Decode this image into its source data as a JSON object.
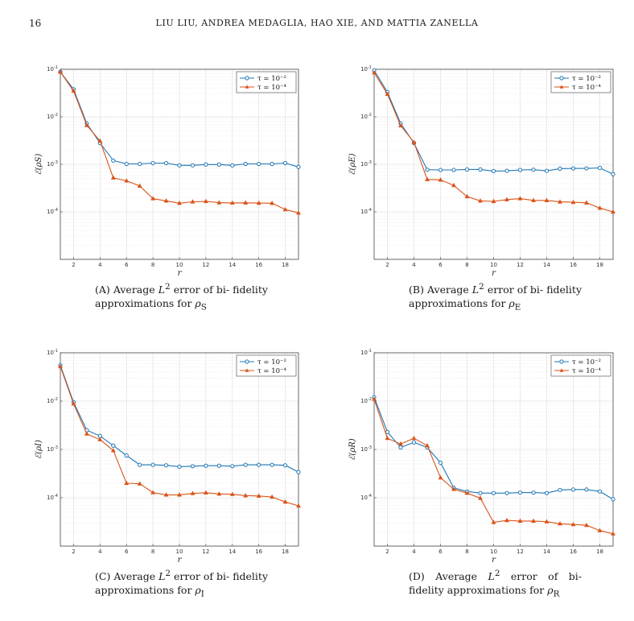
{
  "page": {
    "number": "16",
    "running_head": "LIU LIU, ANDREA MEDAGLIA, HAO XIE, AND MATTIA ZANELLA"
  },
  "legend_labels": [
    "τ = 10⁻²",
    "τ = 10⁻⁴"
  ],
  "colors": {
    "series_a": "#1f77b4",
    "series_b": "#d95319"
  },
  "chart_data": [
    {
      "type": "line",
      "ylabel": "ℰ(ρS)",
      "xlabel": "r",
      "yscale": "log",
      "ylim": [
        1e-05,
        0.1
      ],
      "x": [
        1,
        2,
        3,
        4,
        5,
        6,
        7,
        8,
        9,
        10,
        11,
        12,
        13,
        14,
        15,
        16,
        17,
        18,
        19
      ],
      "xticks": [
        2,
        4,
        6,
        8,
        10,
        12,
        14,
        16,
        18
      ],
      "legend": "top-right",
      "grid": true,
      "series": [
        {
          "name": "τ = 10⁻²",
          "values": [
            0.088,
            0.038,
            0.0072,
            0.0028,
            0.0012,
            0.00102,
            0.00102,
            0.00106,
            0.00106,
            0.00095,
            0.00095,
            0.00099,
            0.00099,
            0.00095,
            0.00102,
            0.00102,
            0.00102,
            0.00106,
            0.00088
          ]
        },
        {
          "name": "τ = 10⁻⁴",
          "values": [
            0.088,
            0.035,
            0.0066,
            0.0031,
            0.00052,
            0.00045,
            0.00035,
            0.00019,
            0.00017,
            0.000152,
            0.000163,
            0.000166,
            0.000156,
            0.000154,
            0.000155,
            0.000153,
            0.000152,
            0.000112,
            9.5e-05
          ]
        }
      ]
    },
    {
      "type": "line",
      "ylabel": "ℰ(ρE)",
      "xlabel": "r",
      "yscale": "log",
      "ylim": [
        1e-05,
        0.1
      ],
      "x": [
        1,
        2,
        3,
        4,
        5,
        6,
        7,
        8,
        9,
        10,
        11,
        12,
        13,
        14,
        15,
        16,
        17,
        18,
        19
      ],
      "xticks": [
        2,
        4,
        6,
        8,
        10,
        12,
        14,
        16,
        18
      ],
      "legend": "top-right",
      "grid": true,
      "series": [
        {
          "name": "τ = 10⁻²",
          "values": [
            0.095,
            0.033,
            0.0072,
            0.0028,
            0.00077,
            0.00076,
            0.00076,
            0.00078,
            0.00078,
            0.00072,
            0.00073,
            0.00076,
            0.00077,
            0.00073,
            0.00081,
            0.00082,
            0.00082,
            0.00084,
            0.00062
          ]
        },
        {
          "name": "τ = 10⁻⁴",
          "values": [
            0.085,
            0.03,
            0.0065,
            0.0029,
            0.00048,
            0.00047,
            0.00036,
            0.00021,
            0.00017,
            0.000166,
            0.000181,
            0.00019,
            0.000174,
            0.000174,
            0.000162,
            0.000159,
            0.000155,
            0.00012,
            0.0001
          ]
        }
      ]
    },
    {
      "type": "line",
      "ylabel": "ℰ(ρI)",
      "xlabel": "r",
      "yscale": "log",
      "ylim": [
        1e-05,
        0.1
      ],
      "x": [
        1,
        2,
        3,
        4,
        5,
        6,
        7,
        8,
        9,
        10,
        11,
        12,
        13,
        14,
        15,
        16,
        17,
        18,
        19
      ],
      "xticks": [
        2,
        4,
        6,
        8,
        10,
        12,
        14,
        16,
        18
      ],
      "legend": "top-right",
      "grid": true,
      "series": [
        {
          "name": "τ = 10⁻²",
          "values": [
            0.055,
            0.0095,
            0.0025,
            0.0019,
            0.0012,
            0.00075,
            0.00048,
            0.00048,
            0.00047,
            0.00044,
            0.00045,
            0.00046,
            0.00046,
            0.00045,
            0.00048,
            0.00048,
            0.00048,
            0.00047,
            0.00034
          ]
        },
        {
          "name": "τ = 10⁻⁴",
          "values": [
            0.052,
            0.0088,
            0.0021,
            0.0016,
            0.00095,
            0.0002,
            0.000195,
            0.000128,
            0.000115,
            0.000115,
            0.000123,
            0.000127,
            0.00012,
            0.000118,
            0.000111,
            0.000109,
            0.000104,
            8.2e-05,
            6.8e-05
          ]
        }
      ]
    },
    {
      "type": "line",
      "ylabel": "ℰ(ρR)",
      "xlabel": "r",
      "yscale": "log",
      "ylim": [
        1e-05,
        0.1
      ],
      "x": [
        1,
        2,
        3,
        4,
        5,
        6,
        7,
        8,
        9,
        10,
        11,
        12,
        13,
        14,
        15,
        16,
        17,
        18,
        19
      ],
      "xticks": [
        2,
        4,
        6,
        8,
        10,
        12,
        14,
        16,
        18
      ],
      "legend": "top-right",
      "grid": true,
      "series": [
        {
          "name": "τ = 10⁻²",
          "values": [
            0.012,
            0.0023,
            0.0011,
            0.0014,
            0.0011,
            0.00053,
            0.00016,
            0.000135,
            0.000125,
            0.000125,
            0.000125,
            0.000128,
            0.000128,
            0.000125,
            0.000145,
            0.000148,
            0.000148,
            0.000135,
            9.3e-05
          ]
        },
        {
          "name": "τ = 10⁻⁴",
          "values": [
            0.011,
            0.0017,
            0.0013,
            0.0017,
            0.0012,
            0.00026,
            0.00015,
            0.000125,
            9.8e-05,
            3.1e-05,
            3.4e-05,
            3.3e-05,
            3.3e-05,
            3.2e-05,
            2.9e-05,
            2.8e-05,
            2.7e-05,
            2.1e-05,
            1.8e-05
          ]
        }
      ]
    }
  ],
  "captions": [
    {
      "label": "(A)",
      "text_before": "Average",
      "L": "L",
      "sup": "2",
      "text_mid": "error of bi-",
      "line2": "fidelity approximations for",
      "rho": "ρ",
      "sub": "S"
    },
    {
      "label": "(B)",
      "text_before": "Average",
      "L": "L",
      "sup": "2",
      "text_mid": "error of bi-",
      "line2": "fidelity approximations for",
      "rho": "ρ",
      "sub": "E"
    },
    {
      "label": "(C)",
      "text_before": "Average",
      "L": "L",
      "sup": "2",
      "text_mid": "error of bi-",
      "line2": "fidelity approximations for",
      "rho": "ρ",
      "sub": "I"
    },
    {
      "label": "(D)",
      "text_before": "Average",
      "L": "L",
      "sup": "2",
      "text_mid": "error of bi-",
      "line2": "fidelity approximations for",
      "rho": "ρ",
      "sub": "R"
    }
  ]
}
